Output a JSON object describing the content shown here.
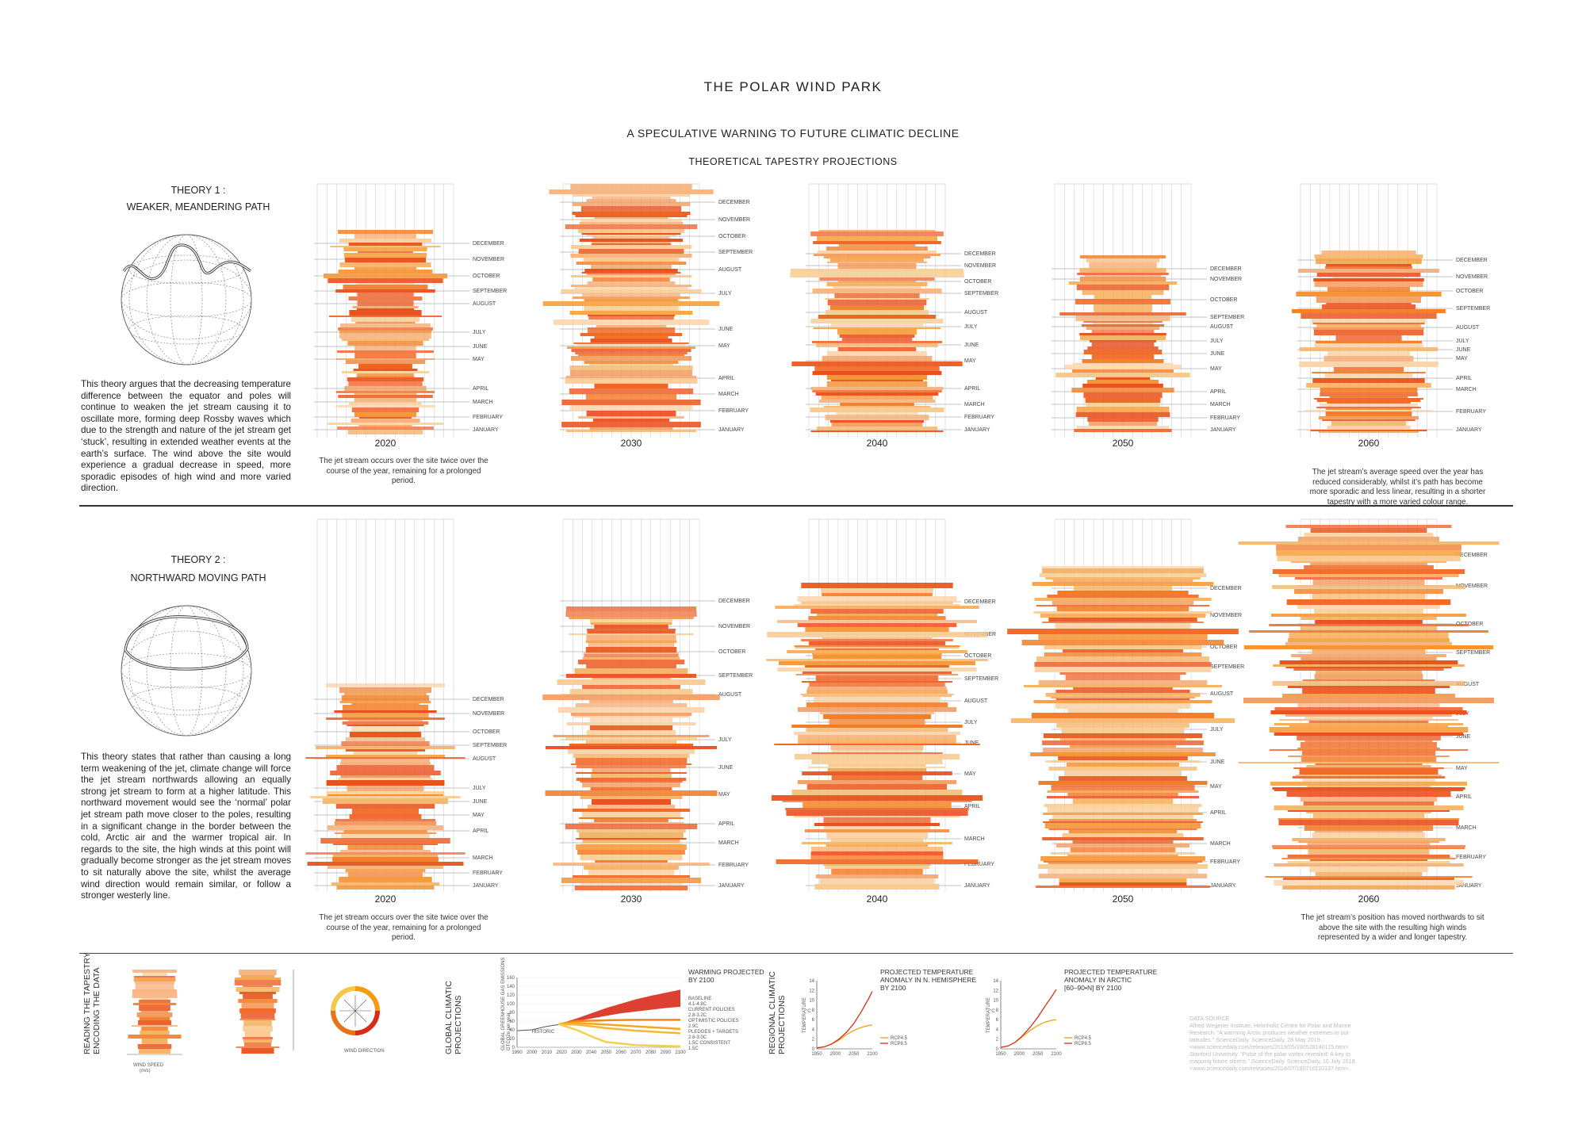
{
  "title": "THE POLAR WIND PARK",
  "subtitle": "A SPECULATIVE WARNING TO FUTURE CLIMATIC DECLINE",
  "section": "THEORETICAL TAPESTRY PROJECTIONS",
  "months": [
    "JANUARY",
    "FEBRUARY",
    "MARCH",
    "APRIL",
    "MAY",
    "JUNE",
    "JULY",
    "AUGUST",
    "SEPTEMBER",
    "OCTOBER",
    "NOVEMBER",
    "DECEMBER"
  ],
  "years": [
    "2020",
    "2030",
    "2040",
    "2050",
    "2060"
  ],
  "theory1": {
    "title_line1": "THEORY 1 :",
    "title_line2": "WEAKER, MEANDERING PATH",
    "text": "This theory argues that the decreasing temperature difference between the equator and poles will continue to weaken the jet stream causing it to oscillate more, forming deep Rossby waves which due to the strength and nature of the jet stream get ‘stuck’, resulting in extended weather events at the earth’s surface. The wind above the site would experience a gradual decrease in speed, more sporadic episodes of high wind and more varied direction.",
    "note_left": "The jet stream occurs over the site twice over the course of the year, remaining for a prolonged period.",
    "note_right": "The jet stream’s average speed over the year has reduced considerably, whilst it’s path has become more sporadic and less linear, resulting in a shorter tapestry with a more varied colour range."
  },
  "theory2": {
    "title_line1": "THEORY 2 :",
    "title_line2": "NORTHWARD MOVING PATH",
    "text": "This theory states that rather than causing a long term weakening of the jet, climate change will force the jet stream northwards allowing an equally strong jet stream to form at a higher latitude. This northward movement would see the ‘normal’ polar jet stream path move closer to the poles, resulting in a significant change in the border between the cold, Arctic air and the warmer tropical air. In regards to the site, the high winds at this point will gradually become stronger as the jet stream moves to sit naturally above the site, whilst the average wind direction would remain similar, or follow a stronger westerly line.",
    "note_left": "The jet stream occurs over the site twice over the course of the year, remaining for a prolonged period.",
    "note_right": "The jet stream’s position has moved northwards to sit above the site with the resulting high winds represented by a wider and longer tapestry."
  },
  "bottom": {
    "reading_label_1": "READING THE TAPESTRY",
    "reading_label_2": "ENCODING THE DATA",
    "wind_speed_label": "WIND SPEED",
    "wind_speed_unit": "(m/s)",
    "wind_direction_label": "WIND DIRECTION",
    "global_label_1": "GLOBAL CLIMATIC",
    "global_label_2": "PROJECTIONS",
    "regional_label_1": "REGIONAL CLIMATIC",
    "regional_label_2": "PROJECTIONS",
    "warming_title_1": "WARMING PROJECTED",
    "warming_title_2": "BY 2100",
    "warming_legend": [
      "BASELINE",
      "4.1-4.8C",
      "CURRENT POLICIES",
      "2.8-3.2C",
      "OPTIMISTIC POLICIES",
      "2.9C",
      "PLEDGES + TARGETS",
      "2.6-3.0C",
      "1.5C CONSISTENT",
      "1.5C"
    ],
    "historic_label": "HISTORIC",
    "emissions_axis": "GLOBAL GREENHOUSE GAS EMISSIONS",
    "emissions_unit": "GTCO2e per year",
    "emissions_x": [
      "1990",
      "2000",
      "2010",
      "2020",
      "2030",
      "2040",
      "2050",
      "2060",
      "2070",
      "2080",
      "2090",
      "2100"
    ],
    "emissions_y": [
      "0",
      "20",
      "40",
      "60",
      "80",
      "100",
      "120",
      "140",
      "160"
    ],
    "temp_chart1_title": [
      "PROJECTED TEMPERATURE",
      "ANOMALY IN N. HEMISPHERE",
      "BY 2100"
    ],
    "temp_chart2_title": [
      "PROJECTED TEMPERATURE",
      "ANOMALY IN ARCTIC",
      "[60–90•N] BY 2100"
    ],
    "temp_axis": "TEMPERATURE",
    "temp_unit": "°C",
    "temp_x": [
      "1950",
      "2000",
      "2050",
      "2100"
    ],
    "temp_y": [
      "0",
      "2",
      "4",
      "6",
      "8",
      "10",
      "12",
      "14"
    ],
    "rcp45": "RCP4.5",
    "rcp85": "RCP8.5",
    "source_title": "DATA SOURCE",
    "source_text": "Alfred Wegener Institute, Helmholtz Centre for Polar and Marine Research. “A warming Arctic produces weather extremes in our latitudes.” ScienceDaily. ScienceDaily, 28 May 2019. <www.sciencedaily.com/releases/2019/05/190528140115.htm>. Stanford University. “Pulse of the polar vortex revealed: A key to mapping future storms.” ScienceDaily. ScienceDaily, 10 July 2018. <www.sciencedaily.com/releases/2018/07/180710110137.htm>."
  },
  "chart_data": [
    {
      "type": "line",
      "title": "WARMING PROJECTED BY 2100",
      "xlabel": "",
      "ylabel": "GLOBAL GREENHOUSE GAS EMISSIONS (GTCO2e per year)",
      "xlim": [
        1990,
        2100
      ],
      "ylim": [
        0,
        160
      ],
      "x": [
        1990,
        2000,
        2010,
        2020,
        2030,
        2040,
        2050,
        2060,
        2070,
        2080,
        2090,
        2100
      ],
      "series": [
        {
          "name": "HISTORIC",
          "x": [
            1990,
            2000,
            2010,
            2018
          ],
          "values": [
            38,
            40,
            48,
            52
          ],
          "color": "#555555"
        },
        {
          "name": "BASELINE (upper)",
          "x": [
            2018,
            2030,
            2040,
            2050,
            2060,
            2070,
            2080,
            2090,
            2100
          ],
          "values": [
            53,
            66,
            78,
            90,
            100,
            110,
            118,
            125,
            132
          ],
          "color": "#d92b1b"
        },
        {
          "name": "BASELINE (lower)",
          "x": [
            2018,
            2030,
            2040,
            2050,
            2060,
            2070,
            2080,
            2090,
            2100
          ],
          "values": [
            53,
            60,
            66,
            72,
            78,
            82,
            86,
            90,
            93
          ],
          "color": "#d92b1b"
        },
        {
          "name": "CURRENT POLICIES",
          "x": [
            2018,
            2030,
            2050,
            2070,
            2100
          ],
          "values": [
            53,
            60,
            62,
            63,
            63
          ],
          "color": "#f28a1a"
        },
        {
          "name": "OPTIMISTIC POLICIES",
          "x": [
            2018,
            2030,
            2050,
            2070,
            2100
          ],
          "values": [
            53,
            56,
            52,
            48,
            42
          ],
          "color": "#f5a623"
        },
        {
          "name": "PLEDGES + TARGETS",
          "x": [
            2018,
            2030,
            2050,
            2070,
            2100
          ],
          "values": [
            53,
            52,
            44,
            38,
            32
          ],
          "color": "#f7b733"
        },
        {
          "name": "1.5C CONSISTENT",
          "x": [
            2018,
            2030,
            2040,
            2050,
            2070,
            2100
          ],
          "values": [
            53,
            40,
            25,
            12,
            5,
            2
          ],
          "color": "#f6d04d"
        }
      ]
    },
    {
      "type": "line",
      "title": "PROJECTED TEMPERATURE ANOMALY IN N. HEMISPHERE BY 2100",
      "ylabel": "TEMPERATURE °C",
      "xlim": [
        1950,
        2100
      ],
      "ylim": [
        0,
        14
      ],
      "series": [
        {
          "name": "RCP4.5",
          "x": [
            1950,
            1970,
            1990,
            2010,
            2030,
            2050,
            2070,
            2090,
            2100
          ],
          "values": [
            0.2,
            0.4,
            1.0,
            1.8,
            2.9,
            3.8,
            4.4,
            4.8,
            4.9
          ],
          "color": "#f39c12"
        },
        {
          "name": "RCP8.5",
          "x": [
            1950,
            1970,
            1990,
            2010,
            2030,
            2050,
            2070,
            2090,
            2100
          ],
          "values": [
            0.2,
            0.4,
            1.0,
            2.0,
            3.4,
            5.2,
            7.6,
            10.3,
            11.8
          ],
          "color": "#d92b1b"
        }
      ]
    },
    {
      "type": "line",
      "title": "PROJECTED TEMPERATURE ANOMALY IN ARCTIC [60–90•N] BY 2100",
      "ylabel": "TEMPERATURE °C",
      "xlim": [
        1950,
        2100
      ],
      "ylim": [
        0,
        14
      ],
      "series": [
        {
          "name": "RCP4.5",
          "x": [
            1950,
            1970,
            1990,
            2010,
            2030,
            2050,
            2070,
            2090,
            2100
          ],
          "values": [
            0.3,
            0.6,
            1.4,
            2.6,
            3.8,
            4.8,
            5.5,
            5.9,
            6.0
          ],
          "color": "#f39c12"
        },
        {
          "name": "RCP8.5",
          "x": [
            1950,
            1970,
            1990,
            2010,
            2030,
            2050,
            2070,
            2090,
            2100
          ],
          "values": [
            0.3,
            0.6,
            1.4,
            2.8,
            4.5,
            6.5,
            8.8,
            11.0,
            12.2
          ],
          "color": "#d92b1b"
        }
      ]
    }
  ]
}
